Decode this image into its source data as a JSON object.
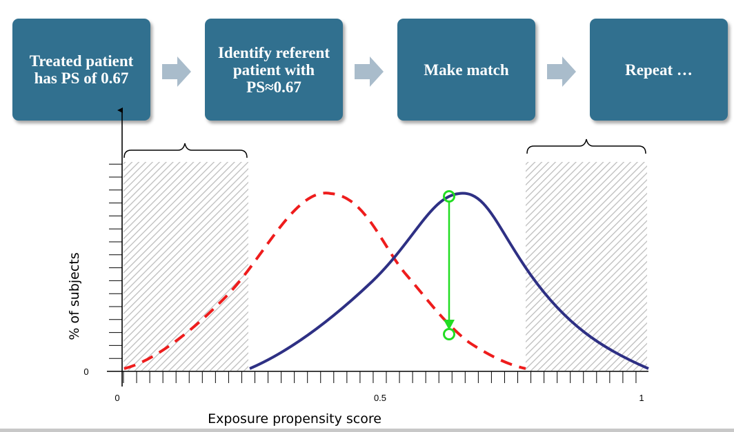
{
  "steps": [
    {
      "label": "Treated patient has PS of 0.67"
    },
    {
      "label": "Identify referent patient with PS≈0.67"
    },
    {
      "label": "Make match"
    },
    {
      "label": "Repeat …"
    }
  ],
  "chart": {
    "ylabel": "% of  subjects",
    "xlabel": "Exposure propensity score",
    "y_zero_label": "0",
    "x_ticks": [
      "0",
      "0.5",
      "1"
    ]
  },
  "colors": {
    "step_box": "#31708f",
    "flow_arrow": "#a9bccb",
    "treated_curve": "#2e3084",
    "referent_curve": "#ee1c1c",
    "match_marker": "#22dd22",
    "hatch": "#bdbdbd"
  },
  "icons": [
    "right-chevron-arrow-icon",
    "up-arrow-icon",
    "curly-brace-icon",
    "circle-marker-icon",
    "down-arrow-icon"
  ]
}
